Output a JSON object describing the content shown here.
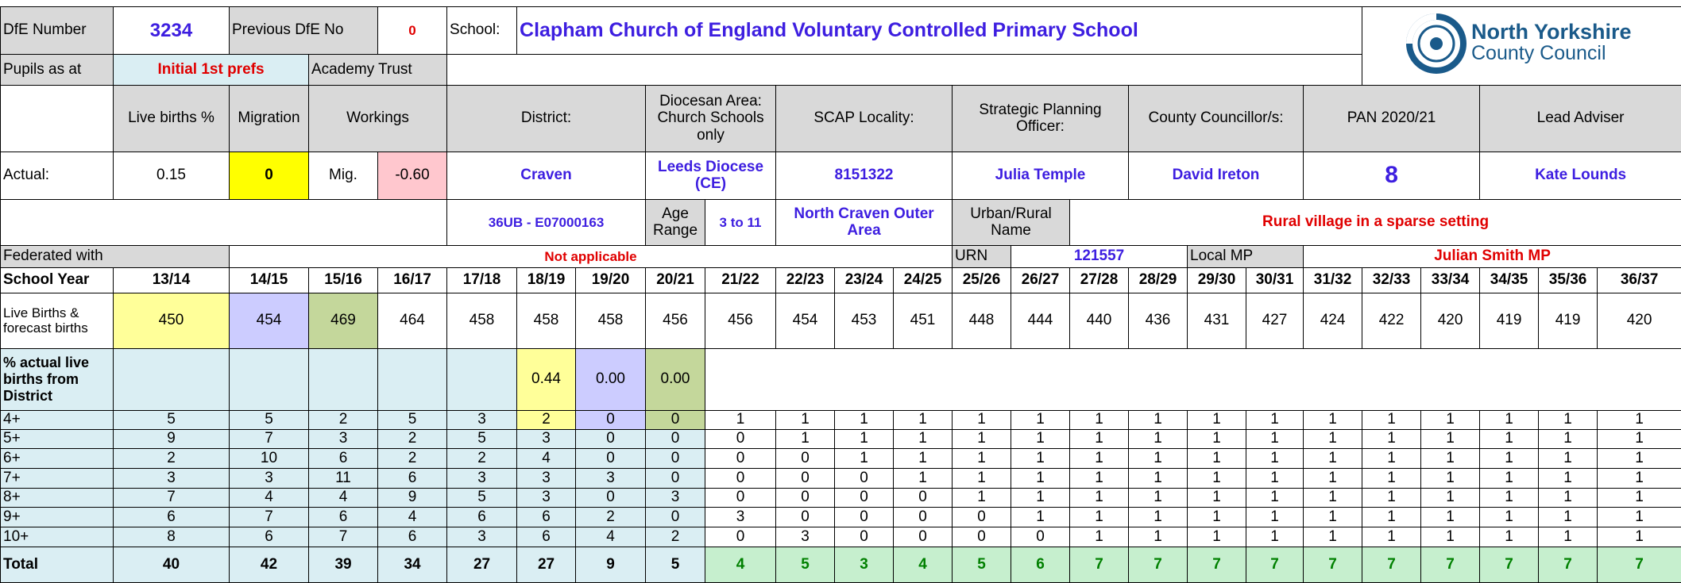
{
  "header": {
    "dfe_label": "DfE Number",
    "dfe_number": "3234",
    "prev_label": "Previous DfE No",
    "prev_number": "0",
    "school_label": "School:",
    "school_name": "Clapham Church of England Voluntary Controlled Primary School",
    "logo_line1": "North Yorkshire",
    "logo_line2": "County Council"
  },
  "info": {
    "pupils_label": "Pupils as at",
    "pupils_value": "Initial 1st prefs",
    "academy_label": "Academy Trust",
    "live_births_label": "Live births %",
    "migration_label": "Migration",
    "workings_label": "Workings",
    "district_label": "District:",
    "diocesan_label": "Diocesan Area: Church Schools only",
    "scap_label": "SCAP Locality:",
    "spo_label": "Strategic Planning Officer:",
    "councillor_label": "County Councillor/s:",
    "pan_label": "PAN 2020/21",
    "adviser_label": "Lead Adviser",
    "actual_label": "Actual:",
    "live_births_pct": "0.15",
    "migration": "0",
    "mig_label": "Mig.",
    "mig_value": "-0.60",
    "district": "Craven",
    "diocese": "Leeds Diocese (CE)",
    "scap": "8151322",
    "spo": "Julia Temple",
    "councillor": "David Ireton",
    "pan": "8",
    "adviser": "Kate Lounds",
    "district_code": "36UB - E07000163",
    "age_range_label": "Age Range",
    "age_range": "3 to 11",
    "area": "North Craven Outer Area",
    "urban_rural_label": "Urban/Rural Name",
    "urban_rural": "Rural village in a sparse setting",
    "federated_label": "Federated with",
    "federated": "Not applicable",
    "urn_label": "URN",
    "urn": "121557",
    "mp_label": "Local MP",
    "mp": "Julian Smith MP"
  },
  "table": {
    "year_label": "School Year",
    "years": [
      "13/14",
      "14/15",
      "15/16",
      "16/17",
      "17/18",
      "18/19",
      "19/20",
      "20/21",
      "21/22",
      "22/23",
      "23/24",
      "24/25",
      "25/26",
      "26/27",
      "27/28",
      "28/29",
      "29/30",
      "30/31",
      "31/32",
      "32/33",
      "33/34",
      "34/35",
      "35/36",
      "36/37"
    ],
    "births_label": "Live Births & forecast births",
    "births": [
      450,
      454,
      469,
      464,
      458,
      458,
      458,
      456,
      456,
      454,
      453,
      451,
      448,
      444,
      440,
      436,
      431,
      427,
      424,
      422,
      420,
      419,
      419,
      420
    ],
    "pct_label": "% actual live births from District",
    "pct": [
      "0.44",
      "0.00",
      "0.00"
    ],
    "rows": [
      {
        "label": "4+",
        "values": [
          5,
          5,
          2,
          5,
          3,
          2,
          0,
          0,
          1,
          1,
          1,
          1,
          1,
          1,
          1,
          1,
          1,
          1,
          1,
          1,
          1,
          1,
          1,
          1
        ]
      },
      {
        "label": "5+",
        "values": [
          9,
          7,
          3,
          2,
          5,
          3,
          0,
          0,
          0,
          1,
          1,
          1,
          1,
          1,
          1,
          1,
          1,
          1,
          1,
          1,
          1,
          1,
          1,
          1
        ]
      },
      {
        "label": "6+",
        "values": [
          2,
          10,
          6,
          2,
          2,
          4,
          0,
          0,
          0,
          0,
          1,
          1,
          1,
          1,
          1,
          1,
          1,
          1,
          1,
          1,
          1,
          1,
          1,
          1
        ]
      },
      {
        "label": "7+",
        "values": [
          3,
          3,
          11,
          6,
          3,
          3,
          3,
          0,
          0,
          0,
          0,
          1,
          1,
          1,
          1,
          1,
          1,
          1,
          1,
          1,
          1,
          1,
          1,
          1
        ]
      },
      {
        "label": "8+",
        "values": [
          7,
          4,
          4,
          9,
          5,
          3,
          0,
          3,
          0,
          0,
          0,
          0,
          1,
          1,
          1,
          1,
          1,
          1,
          1,
          1,
          1,
          1,
          1,
          1
        ]
      },
      {
        "label": "9+",
        "values": [
          6,
          7,
          6,
          4,
          6,
          6,
          2,
          0,
          3,
          0,
          0,
          0,
          0,
          1,
          1,
          1,
          1,
          1,
          1,
          1,
          1,
          1,
          1,
          1
        ]
      },
      {
        "label": "10+",
        "values": [
          8,
          6,
          7,
          6,
          3,
          6,
          4,
          2,
          0,
          3,
          0,
          0,
          0,
          0,
          1,
          1,
          1,
          1,
          1,
          1,
          1,
          1,
          1,
          1
        ]
      }
    ],
    "total_label": "Total",
    "totals": [
      40,
      42,
      39,
      34,
      27,
      27,
      9,
      5,
      4,
      5,
      3,
      4,
      5,
      6,
      7,
      7,
      7,
      7,
      7,
      7,
      7,
      7,
      7,
      7
    ]
  }
}
